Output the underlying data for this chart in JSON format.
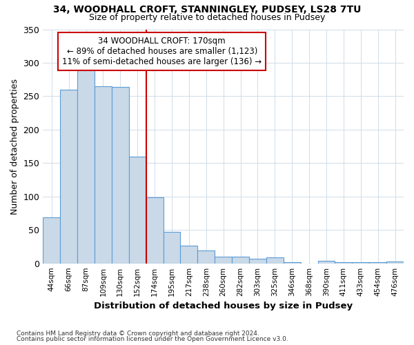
{
  "title1": "34, WOODHALL CROFT, STANNINGLEY, PUDSEY, LS28 7TU",
  "title2": "Size of property relative to detached houses in Pudsey",
  "xlabel": "Distribution of detached houses by size in Pudsey",
  "ylabel": "Number of detached properties",
  "footnote1": "Contains HM Land Registry data © Crown copyright and database right 2024.",
  "footnote2": "Contains public sector information licensed under the Open Government Licence v3.0.",
  "annotation_title": "34 WOODHALL CROFT: 170sqm",
  "annotation_line1": "← 89% of detached houses are smaller (1,123)",
  "annotation_line2": "11% of semi-detached houses are larger (136) →",
  "property_size": 170,
  "bar_color": "#c9d9e8",
  "bar_edge_color": "#5b9bd5",
  "vline_color": "#cc0000",
  "annotation_box_color": "#ffffff",
  "annotation_box_edge": "#cc0000",
  "background_color": "#ffffff",
  "grid_color": "#d0dce8",
  "categories": [
    "44sqm",
    "66sqm",
    "87sqm",
    "109sqm",
    "130sqm",
    "152sqm",
    "174sqm",
    "195sqm",
    "217sqm",
    "238sqm",
    "260sqm",
    "282sqm",
    "303sqm",
    "325sqm",
    "346sqm",
    "368sqm",
    "390sqm",
    "411sqm",
    "433sqm",
    "454sqm",
    "476sqm"
  ],
  "values": [
    69,
    260,
    293,
    265,
    264,
    160,
    99,
    47,
    27,
    19,
    10,
    10,
    7,
    9,
    2,
    0,
    4,
    2,
    2,
    2,
    3
  ],
  "vline_bin_index": 6,
  "ylim": [
    0,
    350
  ],
  "yticks": [
    0,
    50,
    100,
    150,
    200,
    250,
    300,
    350
  ]
}
